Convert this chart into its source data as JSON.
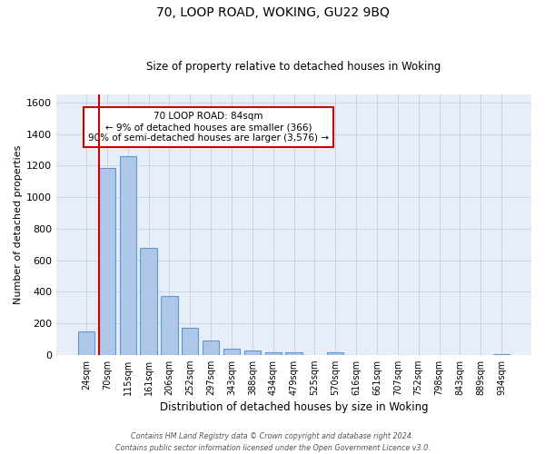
{
  "title": "70, LOOP ROAD, WOKING, GU22 9BQ",
  "subtitle": "Size of property relative to detached houses in Woking",
  "xlabel": "Distribution of detached houses by size in Woking",
  "ylabel": "Number of detached properties",
  "categories": [
    "24sqm",
    "70sqm",
    "115sqm",
    "161sqm",
    "206sqm",
    "252sqm",
    "297sqm",
    "343sqm",
    "388sqm",
    "434sqm",
    "479sqm",
    "525sqm",
    "570sqm",
    "616sqm",
    "661sqm",
    "707sqm",
    "752sqm",
    "798sqm",
    "843sqm",
    "889sqm",
    "934sqm"
  ],
  "values": [
    150,
    1185,
    1260,
    680,
    375,
    170,
    88,
    37,
    28,
    18,
    13,
    0,
    13,
    0,
    0,
    0,
    0,
    0,
    0,
    0,
    5
  ],
  "bar_color": "#aec6e8",
  "bar_edge_color": "#5b9bd5",
  "red_line_index": 1,
  "annotation_text": "70 LOOP ROAD: 84sqm\n← 9% of detached houses are smaller (366)\n90% of semi-detached houses are larger (3,576) →",
  "annotation_box_color": "#ffffff",
  "annotation_box_edge_color": "#cc0000",
  "footer_line1": "Contains HM Land Registry data © Crown copyright and database right 2024.",
  "footer_line2": "Contains public sector information licensed under the Open Government Licence v3.0.",
  "background_color": "#e8eef8",
  "ylim": [
    0,
    1650
  ],
  "yticks": [
    0,
    200,
    400,
    600,
    800,
    1000,
    1200,
    1400,
    1600
  ]
}
